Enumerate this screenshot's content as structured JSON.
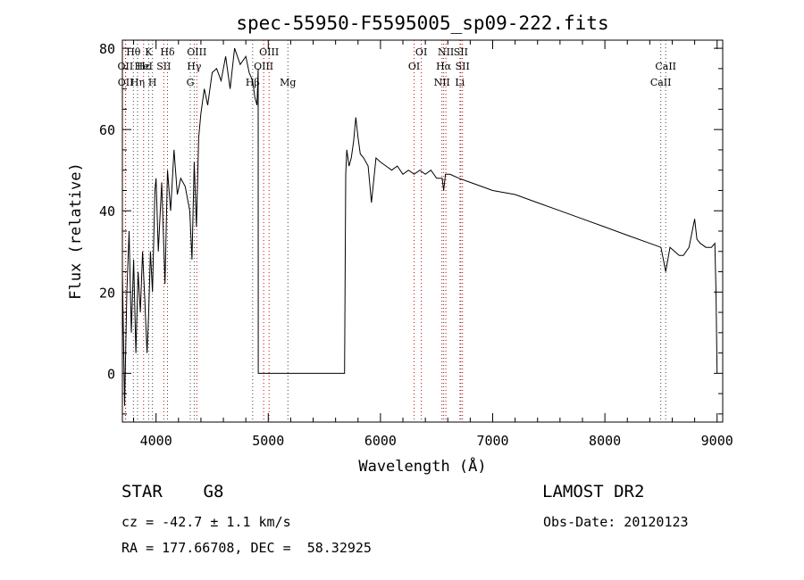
{
  "chart_data": {
    "type": "line",
    "title": "spec-55950-F5595005_sp09-222.fits",
    "xlabel": "Wavelength (Å)",
    "ylabel": "Flux (relative)",
    "xlim": [
      3700,
      9050
    ],
    "ylim": [
      -12,
      82
    ],
    "xticks": [
      4000,
      5000,
      6000,
      7000,
      8000,
      9000
    ],
    "yticks": [
      0,
      20,
      40,
      60,
      80
    ],
    "x": [
      3700,
      3720,
      3740,
      3760,
      3780,
      3800,
      3820,
      3840,
      3860,
      3880,
      3900,
      3920,
      3933,
      3950,
      3968,
      3990,
      4000,
      4020,
      4050,
      4080,
      4102,
      4130,
      4160,
      4190,
      4220,
      4260,
      4300,
      4320,
      4340,
      4360,
      4380,
      4400,
      4430,
      4460,
      4500,
      4540,
      4580,
      4620,
      4660,
      4700,
      4750,
      4800,
      4830,
      4861,
      4880,
      4900,
      4910,
      4911,
      5000,
      5200,
      5400,
      5600,
      5680,
      5690,
      5700,
      5720,
      5740,
      5760,
      5780,
      5800,
      5820,
      5850,
      5890,
      5920,
      5960,
      6000,
      6050,
      6100,
      6150,
      6200,
      6250,
      6300,
      6350,
      6400,
      6450,
      6500,
      6550,
      6563,
      6580,
      6620,
      6700,
      6800,
      6900,
      7000,
      7200,
      7400,
      7600,
      7800,
      8000,
      8200,
      8400,
      8500,
      8542,
      8580,
      8662,
      8700,
      8750,
      8800,
      8820,
      8850,
      8900,
      8950,
      8980,
      8990,
      9000
    ],
    "y": [
      25,
      -8,
      20,
      35,
      10,
      28,
      5,
      25,
      15,
      30,
      18,
      5,
      14,
      30,
      20,
      45,
      48,
      30,
      47,
      22,
      50,
      40,
      55,
      44,
      48,
      46,
      40,
      28,
      52,
      36,
      58,
      64,
      70,
      66,
      74,
      75,
      72,
      78,
      70,
      80,
      76,
      78,
      74,
      72,
      68,
      66,
      75,
      0,
      0,
      0,
      0,
      0,
      0,
      49,
      55,
      51,
      53,
      57,
      63,
      58,
      54,
      53,
      51,
      42,
      53,
      52,
      51,
      50,
      51,
      49,
      50,
      49,
      50,
      49,
      50,
      48,
      48,
      45,
      49,
      49,
      48,
      47,
      46,
      45,
      44,
      42,
      40,
      38,
      36,
      34,
      32,
      31,
      25,
      31,
      29,
      29,
      31,
      38,
      33,
      32,
      31,
      31,
      32,
      20,
      0
    ],
    "lines": [
      {
        "label": "Hθ",
        "x": 3798,
        "row": 0
      },
      {
        "label": "K",
        "x": 3934,
        "row": 0
      },
      {
        "label": "Hδ",
        "x": 4102,
        "row": 0
      },
      {
        "label": "OII",
        "x": 3727,
        "row": 1
      },
      {
        "label": "Hε",
        "x": 3889,
        "row": 1
      },
      {
        "label": "HeI",
        "x": 3889,
        "row": 1
      },
      {
        "label": "SII",
        "x": 4069,
        "row": 1
      },
      {
        "label": "OII",
        "x": 3729,
        "row": 2
      },
      {
        "label": "Hη",
        "x": 3835,
        "row": 2
      },
      {
        "label": "H",
        "x": 3968,
        "row": 2
      },
      {
        "label": "OIII",
        "x": 4363,
        "row": 0
      },
      {
        "label": "Hγ",
        "x": 4340,
        "row": 1
      },
      {
        "label": "G",
        "x": 4305,
        "row": 2
      },
      {
        "label": "OIII",
        "x": 5007,
        "row": 0
      },
      {
        "label": "OIII",
        "x": 4959,
        "row": 1
      },
      {
        "label": "Hβ",
        "x": 4861,
        "row": 2
      },
      {
        "label": "Mg",
        "x": 5175,
        "row": 2
      },
      {
        "label": "OI",
        "x": 6364,
        "row": 0
      },
      {
        "label": "OI",
        "x": 6300,
        "row": 1
      },
      {
        "label": "NII",
        "x": 6583,
        "row": 0
      },
      {
        "label": "SII",
        "x": 6716,
        "row": 0
      },
      {
        "label": "Hα",
        "x": 6563,
        "row": 1
      },
      {
        "label": "SII",
        "x": 6731,
        "row": 1
      },
      {
        "label": "NII",
        "x": 6548,
        "row": 2
      },
      {
        "label": "Li",
        "x": 6708,
        "row": 2
      },
      {
        "label": "CaII",
        "x": 8542,
        "row": 1
      },
      {
        "label": "CaII",
        "x": 8498,
        "row": 2
      }
    ],
    "line_colors": {
      "emission": "#cc0000",
      "absorption": "#444444"
    },
    "emission_lines": [
      3727,
      3729,
      3889,
      4069,
      4363,
      4959,
      5007,
      6300,
      6364,
      6548,
      6583,
      6716,
      6731
    ]
  },
  "info": {
    "class": "STAR    G8",
    "survey": "LAMOST DR2",
    "cz": "cz = -42.7 ± 1.1 km/s",
    "obs_date": "Obs-Date: 20120123",
    "coords": "RA = 177.66708, DEC =  58.32925"
  }
}
